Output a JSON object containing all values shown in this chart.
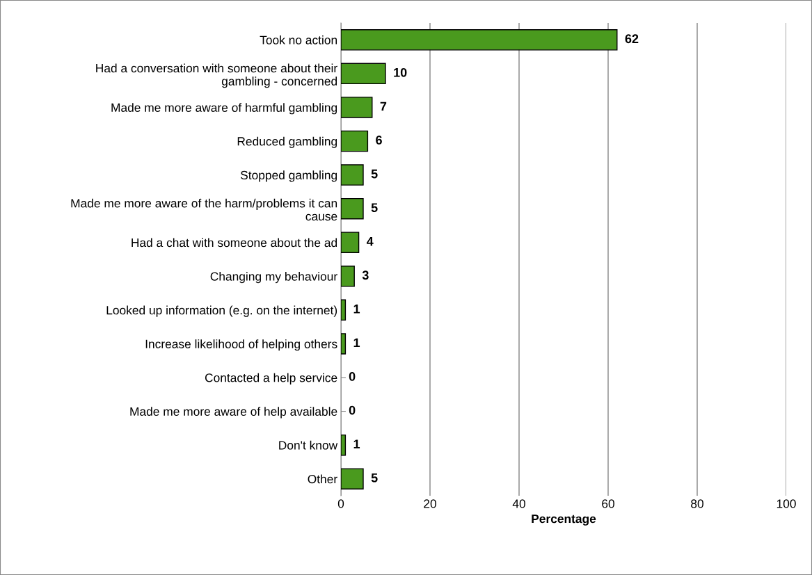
{
  "chart_data": {
    "type": "bar",
    "orientation": "horizontal",
    "xlabel": "Percentage",
    "categories": [
      "Took no action",
      "Had a conversation with someone about their\ngambling - concerned",
      "Made me more aware of harmful gambling",
      "Reduced gambling",
      "Stopped gambling",
      "Made me more aware of the harm/problems it can\ncause",
      "Had a chat with someone about the ad",
      "Changing my behaviour",
      "Looked up information (e.g. on the internet)",
      "Increase likelihood of helping others",
      "Contacted a help service",
      "Made me more aware of help available",
      "Don't know",
      "Other"
    ],
    "values": [
      62,
      10,
      7,
      6,
      5,
      5,
      4,
      3,
      1,
      1,
      0,
      0,
      1,
      5
    ],
    "color": "#4a9a1e",
    "data_labels": true,
    "xlim": [
      0,
      100
    ],
    "xticks": [
      0,
      20,
      40,
      60,
      80,
      100
    ],
    "grid": "x"
  }
}
